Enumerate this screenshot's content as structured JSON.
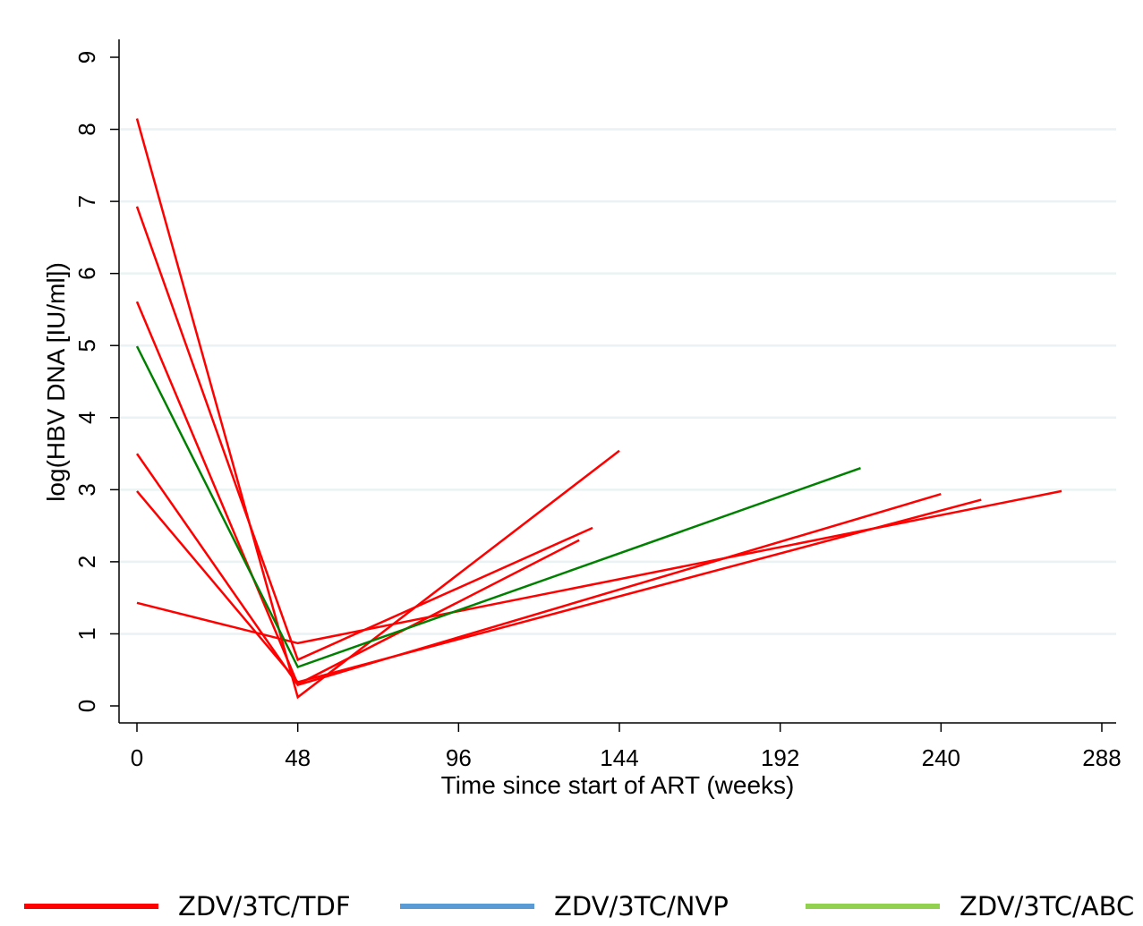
{
  "chart_data": {
    "type": "line",
    "xlabel": "Time since start of ART (weeks)",
    "ylabel": "log(HBV DNA [IU/ml])",
    "xlim": [
      0,
      288
    ],
    "ylim": [
      0,
      9
    ],
    "xticks": [
      0,
      48,
      96,
      144,
      192,
      240,
      288
    ],
    "yticks": [
      0,
      1,
      2,
      3,
      4,
      5,
      6,
      7,
      8,
      9
    ],
    "grid": "horizontal",
    "legend_position": "bottom",
    "legend": [
      {
        "label": "ZDV/3TC/TDF",
        "color": "#ff0000"
      },
      {
        "label": "ZDV/3TC/NVP",
        "color": "#5b9bd5"
      },
      {
        "label": "ZDV/3TC/ABC",
        "color": "#92d050"
      }
    ],
    "series": [
      {
        "group": "ZDV/3TC/TDF",
        "color": "#ff0000",
        "x": [
          0,
          48,
          144
        ],
        "y": [
          8.15,
          0.12,
          3.54
        ]
      },
      {
        "group": "ZDV/3TC/TDF",
        "color": "#ff0000",
        "x": [
          0,
          48,
          136
        ],
        "y": [
          6.93,
          0.64,
          2.47
        ]
      },
      {
        "group": "ZDV/3TC/TDF",
        "color": "#ff0000",
        "x": [
          0,
          48,
          132
        ],
        "y": [
          5.61,
          0.3,
          2.3
        ]
      },
      {
        "group": "ZDV/3TC/TDF",
        "color": "#ff0000",
        "x": [
          0,
          48,
          240
        ],
        "y": [
          3.5,
          0.29,
          2.94
        ]
      },
      {
        "group": "ZDV/3TC/TDF",
        "color": "#ff0000",
        "x": [
          0,
          48,
          252
        ],
        "y": [
          2.98,
          0.33,
          2.86
        ]
      },
      {
        "group": "ZDV/3TC/TDF",
        "color": "#ff0000",
        "x": [
          0,
          48,
          276
        ],
        "y": [
          1.43,
          0.87,
          2.98
        ]
      },
      {
        "group": "ZDV/3TC/ABC",
        "color": "#008000",
        "x": [
          0,
          48,
          216
        ],
        "y": [
          4.99,
          0.54,
          3.3
        ]
      }
    ]
  }
}
